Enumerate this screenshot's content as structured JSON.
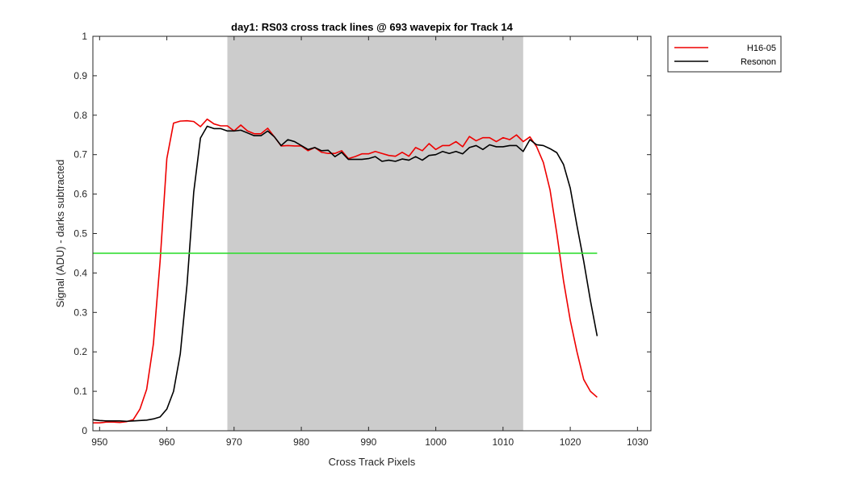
{
  "chart_data": {
    "type": "line",
    "title": "day1: RS03  cross track lines @ 693 wavepix for Track 14",
    "xlabel": "Cross Track Pixels",
    "ylabel": "Signal (ADU) - darks subtracted",
    "xlim": [
      949,
      1032
    ],
    "ylim": [
      0,
      1
    ],
    "xticks": [
      950,
      960,
      970,
      980,
      990,
      1000,
      1010,
      1020,
      1030
    ],
    "yticks": [
      0,
      0.1,
      0.2,
      0.3,
      0.4,
      0.5,
      0.6,
      0.7,
      0.8,
      0.9,
      1
    ],
    "ytick_labels": [
      "0",
      "0.1",
      "0.2",
      "0.3",
      "0.4",
      "0.5",
      "0.6",
      "0.7",
      "0.8",
      "0.9",
      "1"
    ],
    "grid": false,
    "legend_position": "outside-top-right",
    "shaded_region": {
      "x_start": 969,
      "x_end": 1013,
      "color": "#cccccc"
    },
    "reference_line": {
      "y": 0.45,
      "x_start": 949,
      "x_end": 1024,
      "color": "#33dd33"
    },
    "x": [
      949,
      950,
      951,
      952,
      953,
      954,
      955,
      956,
      957,
      958,
      959,
      960,
      961,
      962,
      963,
      964,
      965,
      966,
      967,
      968,
      969,
      970,
      971,
      972,
      973,
      974,
      975,
      976,
      977,
      978,
      979,
      980,
      981,
      982,
      983,
      984,
      985,
      986,
      987,
      988,
      989,
      990,
      991,
      992,
      993,
      994,
      995,
      996,
      997,
      998,
      999,
      1000,
      1001,
      1002,
      1003,
      1004,
      1005,
      1006,
      1007,
      1008,
      1009,
      1010,
      1011,
      1012,
      1013,
      1014,
      1015,
      1016,
      1017,
      1018,
      1019,
      1020,
      1021,
      1022,
      1023,
      1024
    ],
    "series": [
      {
        "name": "H16-05",
        "color": "#ee0000",
        "values": [
          0.02,
          0.02,
          0.022,
          0.022,
          0.021,
          0.023,
          0.028,
          0.055,
          0.105,
          0.22,
          0.43,
          0.69,
          0.78,
          0.785,
          0.786,
          0.784,
          0.771,
          0.79,
          0.778,
          0.773,
          0.773,
          0.76,
          0.775,
          0.76,
          0.753,
          0.753,
          0.767,
          0.745,
          0.722,
          0.723,
          0.722,
          0.722,
          0.71,
          0.718,
          0.706,
          0.703,
          0.703,
          0.71,
          0.69,
          0.695,
          0.702,
          0.702,
          0.708,
          0.703,
          0.698,
          0.696,
          0.706,
          0.696,
          0.718,
          0.71,
          0.728,
          0.713,
          0.723,
          0.723,
          0.733,
          0.72,
          0.746,
          0.735,
          0.743,
          0.743,
          0.733,
          0.743,
          0.738,
          0.75,
          0.733,
          0.745,
          0.72,
          0.68,
          0.61,
          0.5,
          0.38,
          0.28,
          0.2,
          0.13,
          0.1,
          0.085
        ]
      },
      {
        "name": "Resonon",
        "color": "#000000",
        "values": [
          0.028,
          0.026,
          0.025,
          0.025,
          0.025,
          0.024,
          0.025,
          0.026,
          0.027,
          0.03,
          0.035,
          0.055,
          0.1,
          0.195,
          0.37,
          0.605,
          0.742,
          0.772,
          0.766,
          0.766,
          0.76,
          0.76,
          0.762,
          0.755,
          0.748,
          0.748,
          0.76,
          0.745,
          0.723,
          0.738,
          0.733,
          0.723,
          0.713,
          0.718,
          0.71,
          0.711,
          0.695,
          0.706,
          0.688,
          0.688,
          0.688,
          0.69,
          0.695,
          0.683,
          0.686,
          0.683,
          0.689,
          0.686,
          0.695,
          0.686,
          0.698,
          0.7,
          0.708,
          0.703,
          0.708,
          0.702,
          0.718,
          0.723,
          0.713,
          0.725,
          0.72,
          0.72,
          0.723,
          0.723,
          0.708,
          0.738,
          0.725,
          0.723,
          0.715,
          0.705,
          0.675,
          0.615,
          0.52,
          0.43,
          0.33,
          0.24
        ]
      }
    ]
  }
}
